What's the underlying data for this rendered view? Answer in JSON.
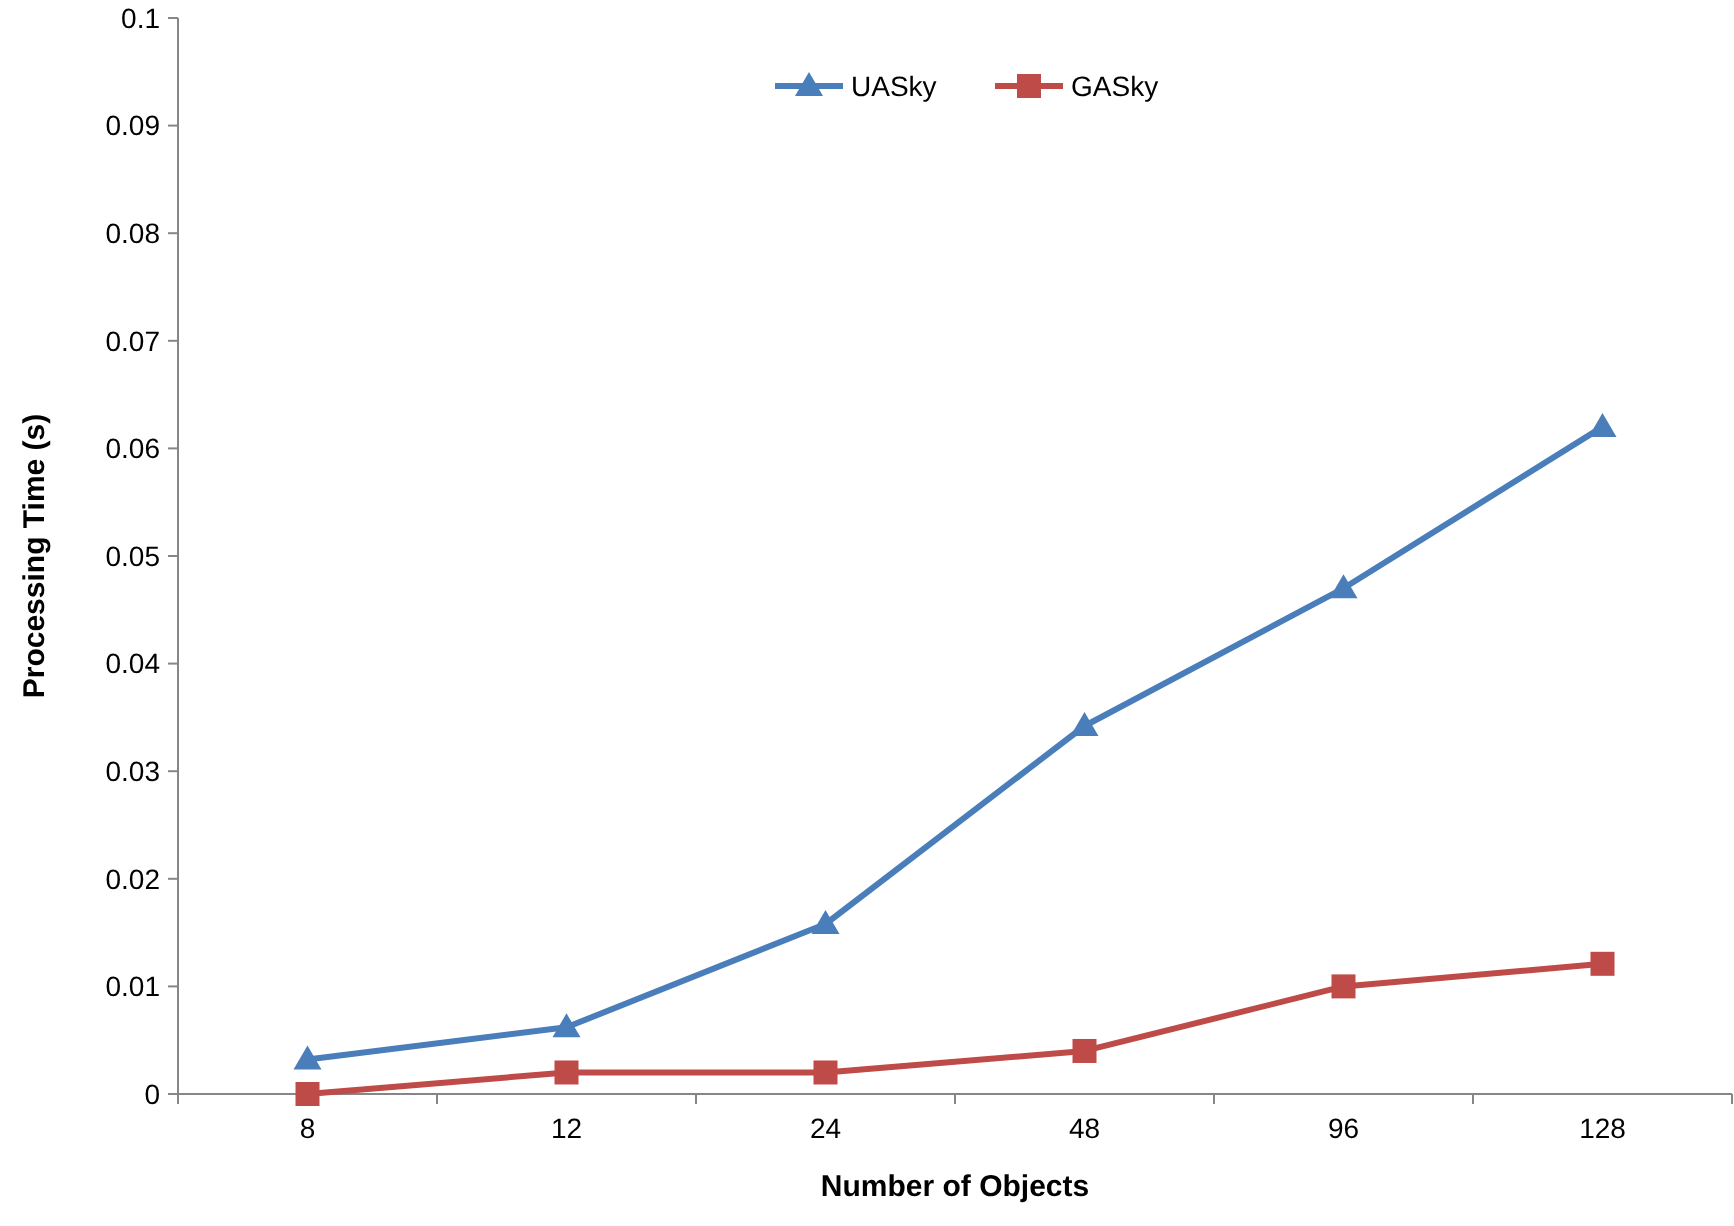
{
  "chart_data": {
    "type": "line",
    "xlabel": "Number of Objects",
    "ylabel": "Processing Time (s)",
    "categories": [
      "8",
      "12",
      "24",
      "48",
      "96",
      "128"
    ],
    "ylim": [
      0,
      0.1
    ],
    "yticks": [
      0,
      0.01,
      0.02,
      0.03,
      0.04,
      0.05,
      0.06,
      0.07,
      0.08,
      0.09,
      0.1
    ],
    "legend": "top",
    "grid": false,
    "series": [
      {
        "name": "UASky",
        "color": "#4a7ebb",
        "marker": "triangle",
        "values": [
          0.0032,
          0.0062,
          0.0158,
          0.0342,
          0.047,
          0.062
        ]
      },
      {
        "name": "GASky",
        "color": "#be4b48",
        "marker": "square",
        "values": [
          0,
          0.002,
          0.002,
          0.004,
          0.01,
          0.0121
        ]
      }
    ]
  }
}
